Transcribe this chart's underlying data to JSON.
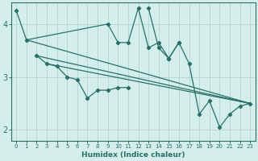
{
  "xlabel": "Humidex (Indice chaleur)",
  "xlim": [
    -0.5,
    23.5
  ],
  "ylim": [
    1.8,
    4.4
  ],
  "yticks": [
    2,
    3,
    4
  ],
  "xticks": [
    0,
    1,
    2,
    3,
    4,
    5,
    6,
    7,
    8,
    9,
    10,
    11,
    12,
    13,
    14,
    15,
    16,
    17,
    18,
    19,
    20,
    21,
    22,
    23
  ],
  "bg_color": "#d4eeeb",
  "grid_color": "#b8d8d4",
  "line_color": "#2a7068",
  "series": [
    {
      "x": [
        0,
        1,
        9,
        10,
        11,
        12,
        13,
        14,
        15,
        16
      ],
      "y": [
        4.25,
        3.7,
        4.0,
        3.65,
        3.65,
        4.3,
        3.55,
        3.65,
        3.35,
        3.65
      ],
      "marker": true,
      "linestyle": "-"
    },
    {
      "x": [
        2,
        3,
        4,
        5,
        6,
        7,
        8,
        9,
        10,
        11
      ],
      "y": [
        3.4,
        3.25,
        3.2,
        3.0,
        2.95,
        2.6,
        2.75,
        2.75,
        2.8,
        2.8
      ],
      "marker": true,
      "linestyle": "-"
    },
    {
      "x": [
        13,
        14,
        15,
        16,
        17,
        18,
        19,
        20,
        21,
        22,
        23
      ],
      "y": [
        4.3,
        3.55,
        3.35,
        3.65,
        3.25,
        2.3,
        2.55,
        2.05,
        2.3,
        2.45,
        2.5
      ],
      "marker": true,
      "linestyle": "-"
    },
    {
      "x": [
        1,
        23
      ],
      "y": [
        3.7,
        2.5
      ],
      "marker": false,
      "linestyle": "-"
    },
    {
      "x": [
        2,
        23
      ],
      "y": [
        3.4,
        2.5
      ],
      "marker": false,
      "linestyle": "-"
    },
    {
      "x": [
        3,
        23
      ],
      "y": [
        3.25,
        2.5
      ],
      "marker": false,
      "linestyle": "-"
    }
  ]
}
